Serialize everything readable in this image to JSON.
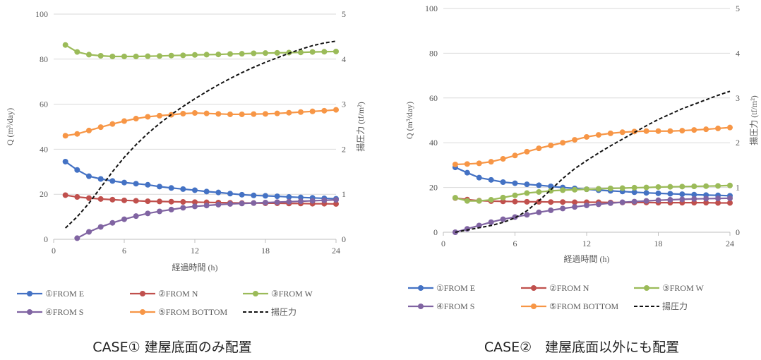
{
  "colors": {
    "E": "#4472C4",
    "N": "#C0504D",
    "W": "#9BBB59",
    "S": "#8064A2",
    "BOTTOM": "#F79646",
    "pressure": "#111111",
    "grid": "#D9D9D9"
  },
  "chart_data": [
    {
      "type": "line",
      "caption": "CASE① 建屋底面のみ配置",
      "xlabel": "経過時間 (h)",
      "ylabel": "Q (m³/day)",
      "y2label": "揚圧力 (tf/m²)",
      "xlim": [
        0,
        24
      ],
      "ylim": [
        0,
        100
      ],
      "y2lim": [
        0,
        5
      ],
      "xticks": [
        "0",
        "6",
        "12",
        "18",
        "24"
      ],
      "yticks": [
        "0",
        "20",
        "40",
        "60",
        "80",
        "100"
      ],
      "y2ticks": [
        "0",
        "1",
        "2",
        "3",
        "4",
        "5"
      ],
      "grid": "horizontal",
      "legend_position": "bottom",
      "series": [
        {
          "name": "①FROM E",
          "key": "E",
          "x": [
            1,
            2,
            3,
            4,
            5,
            6,
            7,
            8,
            9,
            10,
            11,
            12,
            13,
            14,
            15,
            16,
            17,
            18,
            19,
            20,
            21,
            22,
            23,
            24
          ],
          "values": [
            34.5,
            30.8,
            28,
            26.8,
            25.9,
            25.2,
            24.7,
            24.2,
            23.4,
            22.8,
            22.3,
            21.8,
            21.2,
            20.8,
            20.3,
            19.8,
            19.5,
            19.3,
            19.1,
            18.8,
            18.6,
            18.4,
            18.2,
            18
          ]
        },
        {
          "name": "②FROM N",
          "key": "N",
          "x": [
            1,
            2,
            3,
            4,
            5,
            6,
            7,
            8,
            9,
            10,
            11,
            12,
            13,
            14,
            15,
            16,
            17,
            18,
            19,
            20,
            21,
            22,
            23,
            24
          ],
          "values": [
            19.6,
            18.8,
            18.3,
            17.9,
            17.6,
            17.3,
            17.1,
            16.9,
            16.8,
            16.7,
            16.6,
            16.5,
            16.4,
            16.3,
            16.2,
            16.1,
            16.1,
            16.0,
            16.0,
            15.9,
            15.9,
            15.8,
            15.8,
            15.7
          ]
        },
        {
          "name": "③FROM W",
          "key": "W",
          "x": [
            1,
            2,
            3,
            4,
            5,
            6,
            7,
            8,
            9,
            10,
            11,
            12,
            13,
            14,
            15,
            16,
            17,
            18,
            19,
            20,
            21,
            22,
            23,
            24
          ],
          "values": [
            86.3,
            83.2,
            82,
            81.5,
            81.2,
            81.2,
            81.2,
            81.3,
            81.4,
            81.6,
            81.7,
            81.9,
            82.0,
            82.1,
            82.3,
            82.4,
            82.6,
            82.7,
            82.8,
            82.9,
            83.0,
            83.2,
            83.3,
            83.4
          ]
        },
        {
          "name": "④FROM S",
          "key": "S",
          "x": [
            2,
            3,
            4,
            5,
            6,
            7,
            8,
            9,
            10,
            11,
            12,
            13,
            14,
            15,
            16,
            17,
            18,
            19,
            20,
            21,
            22,
            23,
            24
          ],
          "values": [
            0.5,
            3.3,
            5.5,
            7.3,
            8.9,
            10.3,
            11.5,
            12.4,
            13.2,
            14.0,
            14.6,
            15.0,
            15.4,
            15.7,
            15.9,
            16.1,
            16.3,
            16.5,
            16.7,
            16.9,
            17.1,
            17.3,
            17.5
          ]
        },
        {
          "name": "⑤FROM BOTTOM",
          "key": "BOTTOM",
          "x": [
            1,
            2,
            3,
            4,
            5,
            6,
            7,
            8,
            9,
            10,
            11,
            12,
            13,
            14,
            15,
            16,
            17,
            18,
            19,
            20,
            21,
            22,
            23,
            24
          ],
          "values": [
            46,
            46.8,
            48.3,
            49.8,
            51.2,
            52.5,
            53.6,
            54.4,
            54.9,
            55.3,
            55.8,
            56.1,
            55.9,
            55.7,
            55.5,
            55.5,
            55.6,
            55.7,
            55.9,
            56.2,
            56.5,
            56.8,
            57.1,
            57.5
          ]
        }
      ],
      "pressure": {
        "name": "揚圧力",
        "key": "pressure",
        "axis": "right",
        "style": "dashed",
        "x": [
          1,
          2,
          3,
          4,
          5,
          6,
          7,
          8,
          9,
          10,
          11,
          12,
          13,
          14,
          15,
          16,
          17,
          18,
          19,
          20,
          21,
          22,
          23,
          24
        ],
        "values": [
          0.25,
          0.5,
          0.8,
          1.15,
          1.5,
          1.82,
          2.1,
          2.35,
          2.57,
          2.77,
          2.95,
          3.12,
          3.28,
          3.43,
          3.57,
          3.7,
          3.82,
          3.93,
          4.03,
          4.13,
          4.22,
          4.3,
          4.36,
          4.4
        ]
      }
    },
    {
      "type": "line",
      "caption": "CASE②　建屋底面以外にも配置",
      "xlabel": "経過時間 (h)",
      "ylabel": "Q (m³/day)",
      "y2label": "揚圧力 (tf/m²)",
      "xlim": [
        0,
        24
      ],
      "ylim": [
        0,
        100
      ],
      "y2lim": [
        0,
        5
      ],
      "xticks": [
        "0",
        "6",
        "12",
        "18",
        "24"
      ],
      "yticks": [
        "0",
        "20",
        "40",
        "60",
        "80",
        "100"
      ],
      "y2ticks": [
        "0",
        "1",
        "2",
        "3",
        "4",
        "5"
      ],
      "grid": "horizontal",
      "legend_position": "bottom",
      "series": [
        {
          "name": "①FROM E",
          "key": "E",
          "x": [
            1,
            2,
            3,
            4,
            5,
            6,
            7,
            8,
            9,
            10,
            11,
            12,
            13,
            14,
            15,
            16,
            17,
            18,
            19,
            20,
            21,
            22,
            23,
            24
          ],
          "values": [
            29,
            26.6,
            24.4,
            23.4,
            22.4,
            21.9,
            21.4,
            21.0,
            20.5,
            20.0,
            19.6,
            19.2,
            18.8,
            18.5,
            18.2,
            17.9,
            17.6,
            17.4,
            17.2,
            17.0,
            16.8,
            16.6,
            16.5,
            16.3
          ]
        },
        {
          "name": "②FROM N",
          "key": "N",
          "x": [
            1,
            2,
            3,
            4,
            5,
            6,
            7,
            8,
            9,
            10,
            11,
            12,
            13,
            14,
            15,
            16,
            17,
            18,
            19,
            20,
            21,
            22,
            23,
            24
          ],
          "values": [
            15.3,
            14.6,
            14.1,
            13.9,
            13.8,
            13.7,
            13.6,
            13.6,
            13.5,
            13.5,
            13.4,
            13.4,
            13.4,
            13.3,
            13.3,
            13.3,
            13.3,
            13.2,
            13.2,
            13.2,
            13.2,
            13.2,
            13.1,
            13.1
          ]
        },
        {
          "name": "③FROM W",
          "key": "W",
          "x": [
            1,
            2,
            3,
            4,
            5,
            6,
            7,
            8,
            9,
            10,
            11,
            12,
            13,
            14,
            15,
            16,
            17,
            18,
            19,
            20,
            21,
            22,
            23,
            24
          ],
          "values": [
            15.4,
            14,
            14,
            14.5,
            15.5,
            16.5,
            17.5,
            18,
            18.5,
            18.8,
            19,
            19.2,
            19.4,
            19.6,
            19.7,
            19.9,
            20.0,
            20.2,
            20.3,
            20.4,
            20.5,
            20.6,
            20.7,
            20.9
          ]
        },
        {
          "name": "④FROM S",
          "key": "S",
          "x": [
            1,
            2,
            3,
            4,
            5,
            6,
            7,
            8,
            9,
            10,
            11,
            12,
            13,
            14,
            15,
            16,
            17,
            18,
            19,
            20,
            21,
            22,
            23,
            24
          ],
          "values": [
            0,
            1.5,
            3,
            4.5,
            5.8,
            6.8,
            7.8,
            8.9,
            9.8,
            10.6,
            11.3,
            12.0,
            12.5,
            13.0,
            13.4,
            13.7,
            14.0,
            14.3,
            14.5,
            14.7,
            14.9,
            15.0,
            15.1,
            15.2
          ]
        },
        {
          "name": "⑤FROM BOTTOM",
          "key": "BOTTOM",
          "x": [
            1,
            2,
            3,
            4,
            5,
            6,
            7,
            8,
            9,
            10,
            11,
            12,
            13,
            14,
            15,
            16,
            17,
            18,
            19,
            20,
            21,
            22,
            23,
            24
          ],
          "values": [
            30.3,
            30.5,
            30.8,
            31.5,
            32.8,
            34.3,
            36.0,
            37.5,
            38.8,
            40.0,
            41.3,
            42.6,
            43.5,
            44.2,
            44.7,
            45.0,
            45.2,
            45.2,
            45.2,
            45.4,
            45.7,
            46.0,
            46.4,
            46.8
          ]
        }
      ],
      "pressure": {
        "name": "揚圧力",
        "key": "pressure",
        "axis": "right",
        "style": "dashed",
        "x": [
          1,
          2,
          3,
          4,
          5,
          6,
          7,
          8,
          9,
          10,
          11,
          12,
          13,
          14,
          15,
          16,
          17,
          18,
          19,
          20,
          21,
          22,
          23,
          24
        ],
        "values": [
          0,
          0.05,
          0.1,
          0.15,
          0.22,
          0.32,
          0.48,
          0.7,
          0.95,
          1.2,
          1.42,
          1.6,
          1.77,
          1.93,
          2.08,
          2.23,
          2.38,
          2.52,
          2.64,
          2.76,
          2.86,
          2.96,
          3.06,
          3.15
        ]
      }
    }
  ]
}
